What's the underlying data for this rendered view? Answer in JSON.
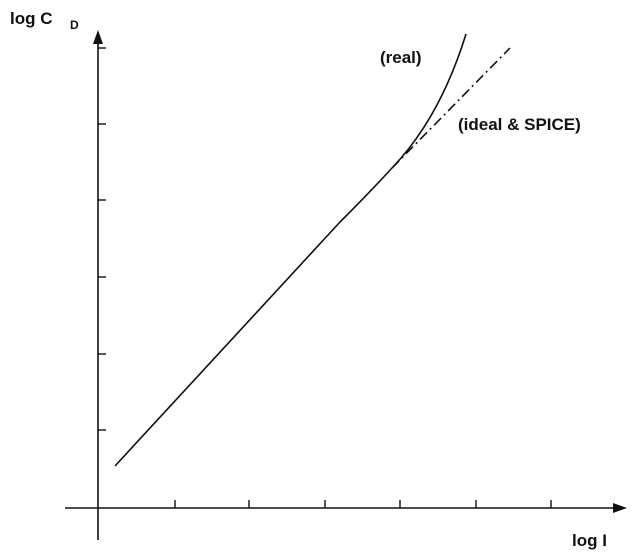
{
  "axes": {
    "y_label": "log C",
    "y_label_subscript": "D",
    "x_label": "log I"
  },
  "curves": {
    "real": "(real)",
    "ideal": "(ideal & SPICE)"
  }
}
